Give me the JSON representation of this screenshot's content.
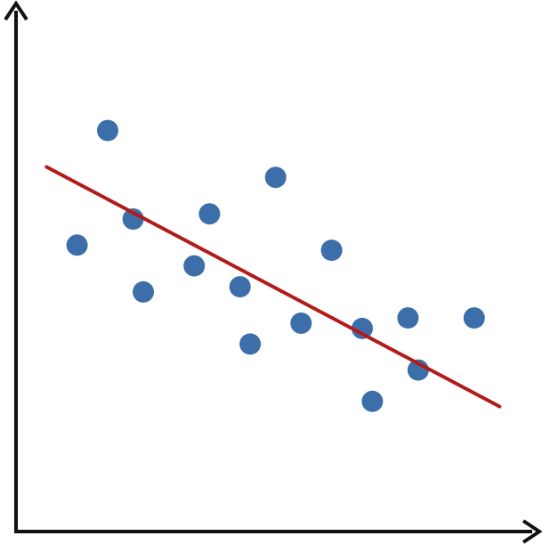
{
  "chart_data": {
    "type": "scatter",
    "title": "",
    "xlabel": "",
    "ylabel": "",
    "xlim": [
      0,
      10
    ],
    "ylim": [
      0,
      10
    ],
    "grid": false,
    "legend": "none",
    "points": [
      {
        "x": 1.2,
        "y": 5.5
      },
      {
        "x": 1.8,
        "y": 7.7
      },
      {
        "x": 2.3,
        "y": 6.0
      },
      {
        "x": 2.5,
        "y": 4.6
      },
      {
        "x": 3.5,
        "y": 5.1
      },
      {
        "x": 3.8,
        "y": 6.1
      },
      {
        "x": 4.4,
        "y": 4.7
      },
      {
        "x": 4.6,
        "y": 3.6
      },
      {
        "x": 5.1,
        "y": 6.8
      },
      {
        "x": 5.6,
        "y": 4.0
      },
      {
        "x": 6.2,
        "y": 5.4
      },
      {
        "x": 6.8,
        "y": 3.9
      },
      {
        "x": 7.0,
        "y": 2.5
      },
      {
        "x": 7.7,
        "y": 4.1
      },
      {
        "x": 7.9,
        "y": 3.1
      },
      {
        "x": 9.0,
        "y": 4.1
      }
    ],
    "trendline": {
      "x": [
        0.6,
        9.5
      ],
      "y": [
        7.0,
        2.4
      ]
    },
    "colors": {
      "point": "#3c6ea9",
      "trendline": "#b31b1b",
      "axis": "#111111"
    }
  }
}
